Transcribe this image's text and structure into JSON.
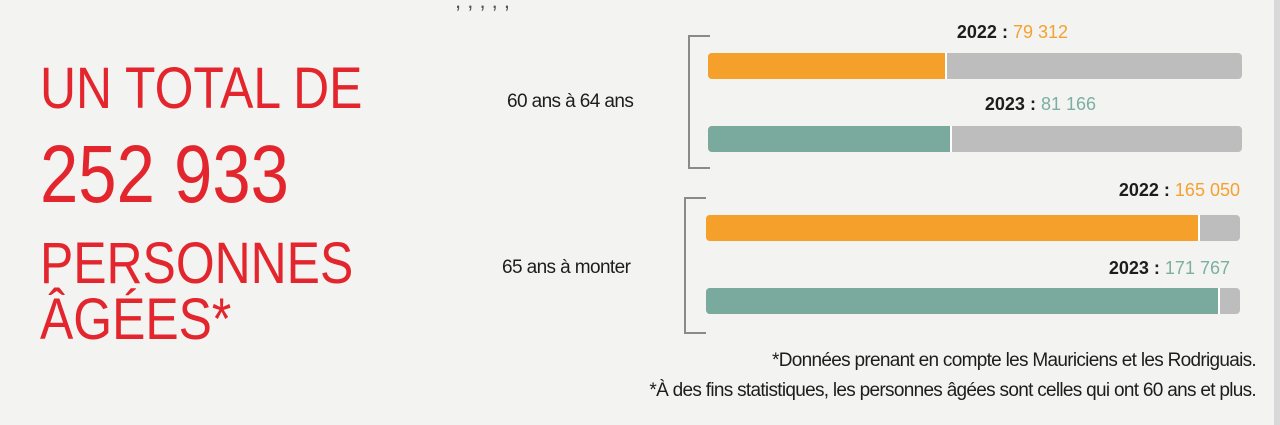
{
  "headline": {
    "line1": "UN TOTAL DE",
    "line2": "252 933",
    "line3": "PERSONNES",
    "line4": "ÂGÉES*"
  },
  "colors": {
    "headline": "#e3262d",
    "bar_2022": "#f5a02b",
    "bar_2023": "#7aaa9e",
    "track": "#bdbdbd",
    "value_2022_text": "#f4a12f",
    "value_2023_text": "#7bafa3"
  },
  "chart_data": {
    "type": "bar",
    "orientation": "horizontal",
    "categories": [
      "60 ans à 64 ans",
      "65 ans à monter"
    ],
    "series": [
      {
        "name": "2022",
        "values": [
          79312,
          165050
        ]
      },
      {
        "name": "2023",
        "values": [
          81166,
          171767
        ]
      }
    ],
    "value_labels": {
      "2022": [
        "79 312",
        "165 050"
      ],
      "2023": [
        "81 166",
        "171 767"
      ]
    },
    "xlim": [
      0,
      179000
    ],
    "grid": false,
    "legend": "none"
  },
  "footnotes": [
    "*Données prenant en compte les Mauriciens et les Rodriguais.",
    "*À des fins statistiques, les personnes âgées sont celles qui ont 60 ans et plus."
  ]
}
